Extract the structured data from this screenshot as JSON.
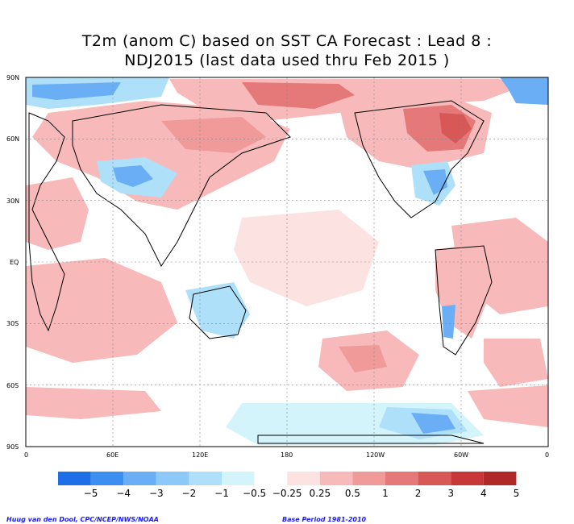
{
  "title": {
    "line1": "T2m (anom C) based on SST CA Forecast : Lead 8 :",
    "line2": "NDJ2015 (last data used thru Feb 2015 )"
  },
  "axes": {
    "lat_labels": [
      "90N",
      "60N",
      "30N",
      "EQ",
      "30S",
      "60S",
      "90S"
    ],
    "lon_labels": [
      "0",
      "60E",
      "120E",
      "180",
      "120W",
      "60W",
      "0"
    ]
  },
  "legend": {
    "colors": [
      "#1e6ee8",
      "#3c8ef0",
      "#6aaef5",
      "#8cc8f8",
      "#aee0fa",
      "#d4f4fb",
      "#ffffff",
      "#fde2e2",
      "#f7b9b9",
      "#f09a9a",
      "#e57878",
      "#d85858",
      "#c83838",
      "#b02828"
    ],
    "labels": [
      "−5",
      "−4",
      "−3",
      "−2",
      "−1",
      "−0.5",
      "−0.25",
      "0.25",
      "0.5",
      "1",
      "2",
      "3",
      "4",
      "5"
    ]
  },
  "footer": {
    "left": "Huug van den Dool, CPC/NCEP/NWS/NOAA",
    "right": "Base Period 1981-2010"
  }
}
